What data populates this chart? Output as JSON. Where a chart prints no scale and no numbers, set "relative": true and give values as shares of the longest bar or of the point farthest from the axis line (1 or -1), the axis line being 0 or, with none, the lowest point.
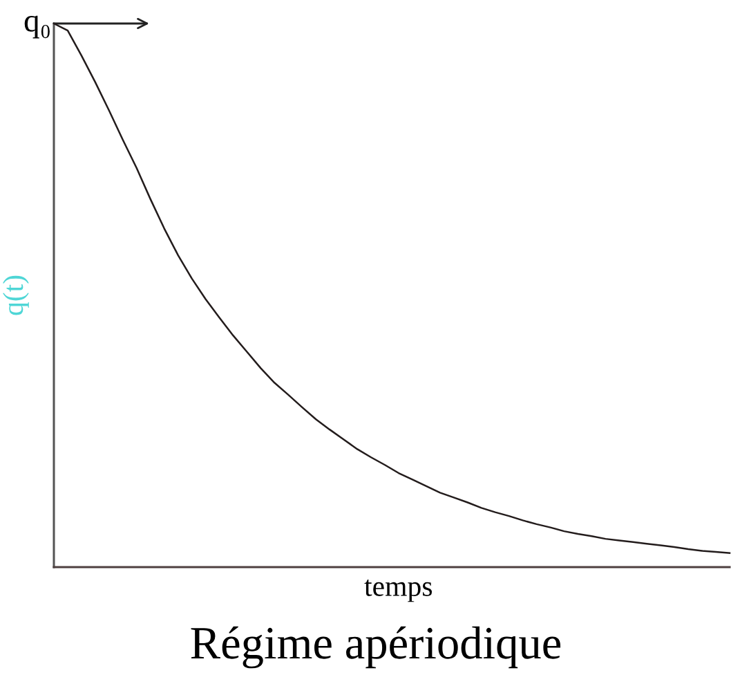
{
  "chart_data": {
    "type": "line",
    "title": "Régime apériodique",
    "xlabel": "temps",
    "ylabel": "q(t)",
    "annotations": [
      "q₀"
    ],
    "relative": true,
    "marker": "none",
    "line_style": "solid",
    "categories": [
      null,
      null,
      null,
      null,
      null,
      null,
      null,
      null,
      null,
      null,
      null,
      null,
      null,
      null,
      null,
      null,
      null,
      null,
      null,
      null,
      null,
      null,
      null,
      null,
      null,
      null,
      null,
      null,
      null,
      null,
      null,
      null,
      null,
      null,
      null,
      null,
      null,
      null,
      null,
      null,
      null,
      null,
      null,
      null,
      null,
      null,
      null,
      null,
      null,
      null
    ],
    "series": [
      {
        "color": "#231c1c",
        "values": [
          1.0,
          0.987,
          0.941,
          0.892,
          0.84,
          0.786,
          0.734,
          0.677,
          0.623,
          0.574,
          0.531,
          0.493,
          0.459,
          0.426,
          0.396,
          0.366,
          0.339,
          0.317,
          0.294,
          0.272,
          0.253,
          0.235,
          0.217,
          0.202,
          0.188,
          0.173,
          0.161,
          0.149,
          0.137,
          0.128,
          0.119,
          0.109,
          0.101,
          0.094,
          0.086,
          0.079,
          0.073,
          0.066,
          0.061,
          0.057,
          0.052,
          0.049,
          0.046,
          0.043,
          0.04,
          0.037,
          0.033,
          0.03,
          0.028,
          0.026
        ]
      }
    ]
  }
}
